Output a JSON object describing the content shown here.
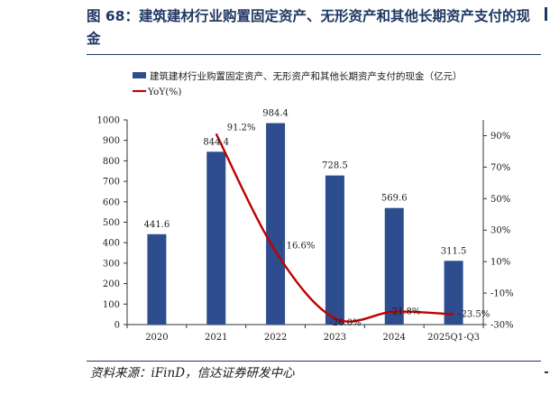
{
  "figure": {
    "title": "图 68：建筑建材行业购置固定资产、无形资产和其他长期资产支付的现金",
    "source": "资料来源：iFinD，信达证券研发中心"
  },
  "chart_data": {
    "type": "bar",
    "categories": [
      "2020",
      "2021",
      "2022",
      "2023",
      "2024",
      "2025Q1-Q3"
    ],
    "series": [
      {
        "name": "建筑建材行业购置固定资产、无形资产和其他长期资产支付的现金（亿元）",
        "type": "bar",
        "axis": "left",
        "values": [
          441.6,
          844.4,
          984.4,
          728.5,
          569.6,
          311.5
        ],
        "labels": [
          "441.6",
          "844.4",
          "984.4",
          "728.5",
          "569.6",
          "311.5"
        ],
        "color": "#2e4d8f"
      },
      {
        "name": "YoY(%)",
        "type": "line",
        "axis": "right",
        "values": [
          null,
          91.2,
          16.6,
          -26.0,
          -21.8,
          -23.5
        ],
        "labels": [
          "",
          "91.2%",
          "16.6%",
          "-26.0%",
          "-21.8%",
          "-23.5%"
        ],
        "color": "#c00000"
      }
    ],
    "y_left": {
      "range": [
        0,
        1000
      ],
      "ticks": [
        0,
        100,
        200,
        300,
        400,
        500,
        600,
        700,
        800,
        900,
        1000
      ],
      "tick_labels": [
        "0",
        "100",
        "200",
        "300",
        "400",
        "500",
        "600",
        "700",
        "800",
        "900",
        "1000"
      ]
    },
    "y_right": {
      "range": [
        -30,
        100
      ],
      "ticks": [
        -30,
        -10,
        10,
        30,
        50,
        70,
        90
      ],
      "tick_labels": [
        "-30%",
        "-10%",
        "10%",
        "30%",
        "50%",
        "70%",
        "90%"
      ]
    },
    "legend_position": "top-left",
    "grid": false
  }
}
